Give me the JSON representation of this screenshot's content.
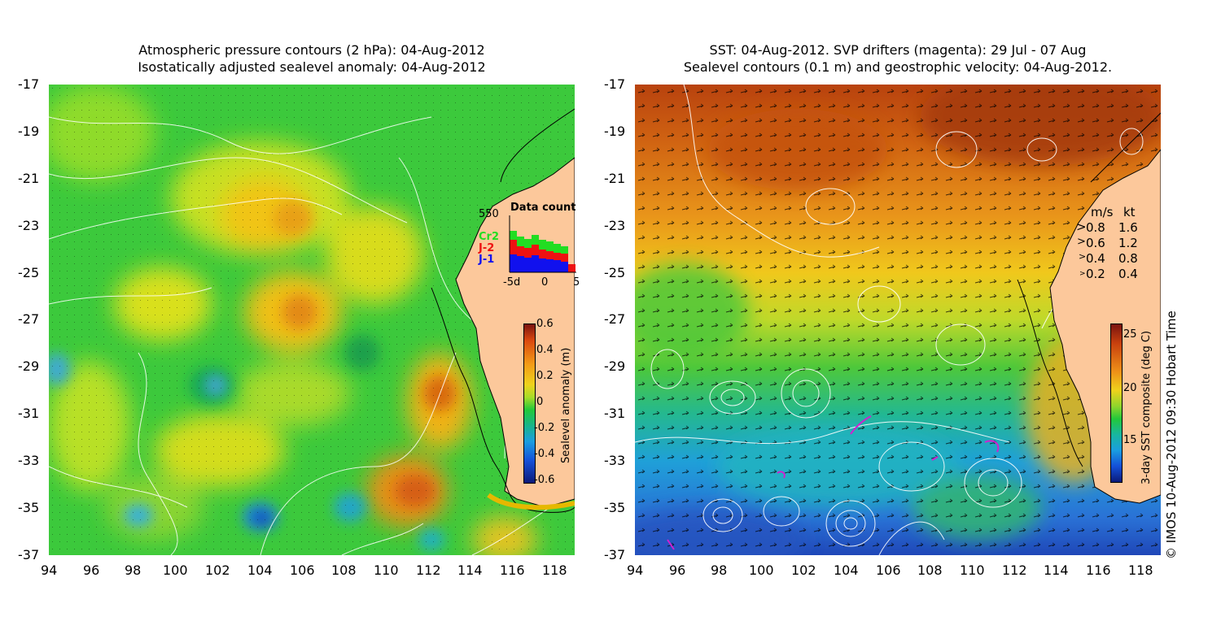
{
  "left_panel": {
    "title_line1": "Atmospheric pressure contours (2 hPa): 04-Aug-2012",
    "title_line2": "Isostatically adjusted sealevel anomaly: 04-Aug-2012",
    "y_ticks": [
      "-17",
      "-19",
      "-21",
      "-23",
      "-25",
      "-27",
      "-29",
      "-31",
      "-33",
      "-35",
      "-37"
    ],
    "x_ticks": [
      "94",
      "96",
      "98",
      "100",
      "102",
      "104",
      "106",
      "108",
      "110",
      "112",
      "114",
      "116",
      "118"
    ],
    "data_count": {
      "title": "Data count",
      "max_label": "550",
      "legend": [
        {
          "name": "Cr2",
          "color": "#22dd22"
        },
        {
          "name": "J-2",
          "color": "#ee1111"
        },
        {
          "name": "J-1",
          "color": "#1111ee"
        }
      ],
      "x_labels": [
        "-5d",
        "0",
        "5"
      ]
    },
    "colorbar": {
      "label": "Sealevel anomaly (m)",
      "ticks": [
        "0.6",
        "0.4",
        "0.2",
        "0",
        "-0.2",
        "-0.4",
        "-0.6"
      ]
    }
  },
  "right_panel": {
    "title_line1": "SST: 04-Aug-2012. SVP drifters (magenta): 29 Jul - 07 Aug",
    "title_line2": "Sealevel contours (0.1 m) and geostrophic velocity: 04-Aug-2012.",
    "y_ticks": [
      "-17",
      "-19",
      "-21",
      "-23",
      "-25",
      "-27",
      "-29",
      "-31",
      "-33",
      "-35",
      "-37"
    ],
    "x_ticks": [
      "94",
      "96",
      "98",
      "100",
      "102",
      "104",
      "106",
      "108",
      "110",
      "112",
      "114",
      "116",
      "118"
    ],
    "velocity_legend": {
      "header_ms": "m/s",
      "header_kt": "kt",
      "rows": [
        {
          "ms": "0.8",
          "kt": "1.6"
        },
        {
          "ms": "0.6",
          "kt": "1.2"
        },
        {
          "ms": "0.4",
          "kt": "0.8"
        },
        {
          "ms": "0.2",
          "kt": "0.4"
        }
      ]
    },
    "colorbar": {
      "label": "3-day SST composite (deg C)",
      "ticks": [
        "25",
        "20",
        "15"
      ]
    },
    "credit": "© IMOS 10-Aug-2012 09:30 Hobart Time"
  },
  "colors": {
    "land": "#fcc89b",
    "ssta_green": "#22c83a",
    "sst_orange": "#e8901e"
  }
}
